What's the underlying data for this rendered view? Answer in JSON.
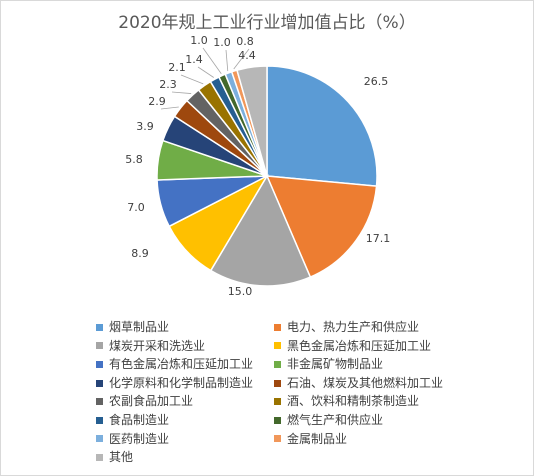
{
  "chart_data": {
    "type": "pie",
    "title": "2020年规上工业行业增加值占比（%）",
    "categories": [
      "烟草制品业",
      "电力、热力生产和供应业",
      "煤炭开采和洗选业",
      "黑色金属冶炼和压延加工业",
      "有色金属冶炼和压延加工业",
      "非金属矿物制品业",
      "化学原料和化学制品制造业",
      "石油、煤炭及其他燃料加工业",
      "农副食品加工业",
      "酒、饮料和精制茶制造业",
      "食品制造业",
      "燃气生产和供应业",
      "医药制造业",
      "金属制品业",
      "其他"
    ],
    "values": [
      26.5,
      17.1,
      15.0,
      8.9,
      7.0,
      5.8,
      3.9,
      2.9,
      2.3,
      2.1,
      1.4,
      1.0,
      1.0,
      0.8,
      4.4
    ],
    "value_labels": [
      "26.5",
      "17.1",
      "15.0",
      "8.9",
      "7.0",
      "5.8",
      "3.9",
      "2.9",
      "2.3",
      "2.1",
      "1.4",
      "1.0",
      "1.0",
      "0.8",
      "4.4"
    ],
    "colors": [
      "#5b9bd5",
      "#ed7d31",
      "#a5a5a5",
      "#ffc000",
      "#4472c4",
      "#70ad47",
      "#264478",
      "#9e480e",
      "#636363",
      "#997300",
      "#255e91",
      "#43682b",
      "#7cafdd",
      "#f1975a",
      "#b7b7b7"
    ],
    "legend_position": "bottom"
  }
}
